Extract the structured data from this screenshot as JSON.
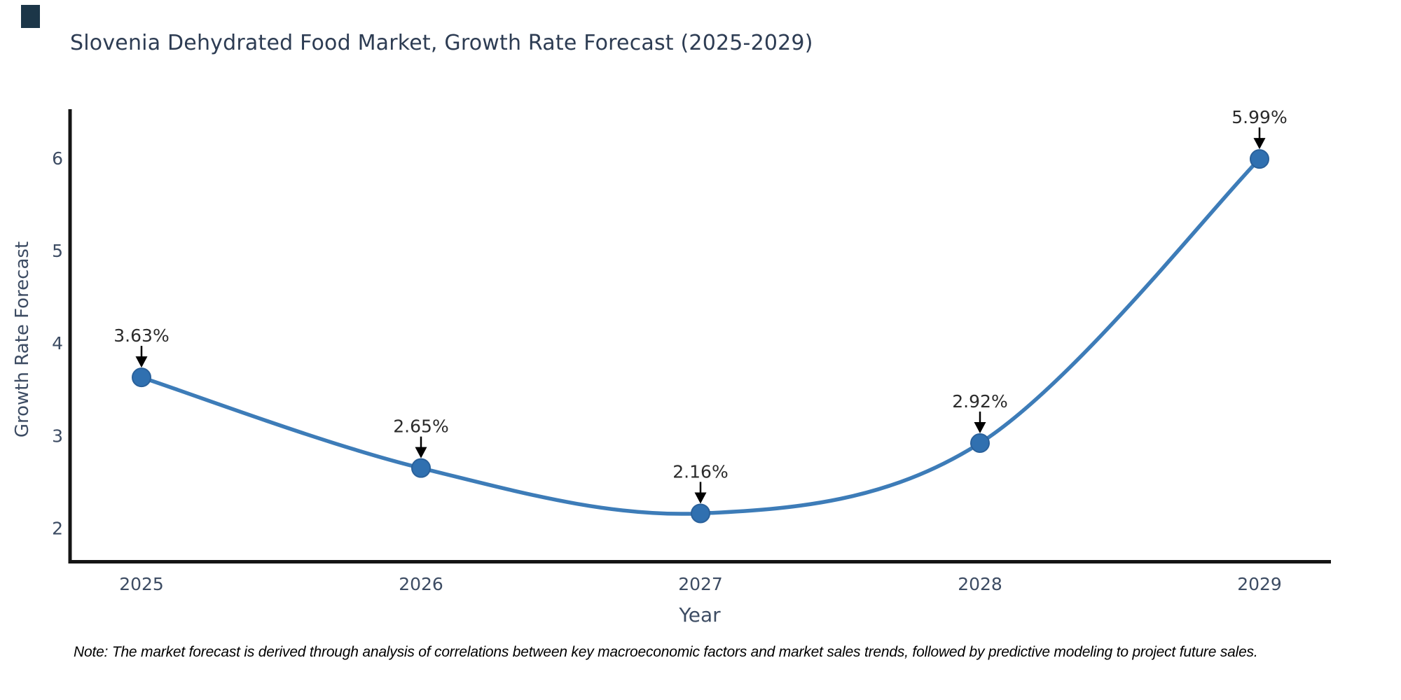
{
  "page": {
    "note": "Note: The market forecast is derived through analysis of correlations between key macroeconomic factors and market sales trends, followed by predictive modeling to project future sales."
  },
  "chart_data": {
    "type": "line",
    "title": "Slovenia Dehydrated Food Market, Growth Rate Forecast (2025-2029)",
    "xlabel": "Year",
    "ylabel": "Growth Rate Forecast",
    "x": [
      2025,
      2026,
      2027,
      2028,
      2029
    ],
    "series": [
      {
        "name": "Growth Rate Forecast",
        "values": [
          3.63,
          2.65,
          2.16,
          2.92,
          5.99
        ]
      }
    ],
    "point_labels": [
      "3.63%",
      "2.65%",
      "2.16%",
      "2.92%",
      "5.99%"
    ],
    "yticks": [
      2,
      3,
      4,
      5,
      6
    ],
    "xtick_labels": [
      "2025",
      "2026",
      "2027",
      "2028",
      "2029"
    ],
    "ylim": [
      1.63,
      6.52
    ],
    "xlim": [
      2024.74,
      2029.26
    ],
    "grid": false,
    "legend": false,
    "marker": "circle",
    "annotation_style": "value label above point with downward black arrow",
    "colors": {
      "line": "#3d7cb8",
      "marker_fill": "#3070b0",
      "marker_edge": "#2a619b",
      "annotation_text": "#2b2b2b",
      "annotation_arrow": "#000000",
      "axis_text": "#3d4c63",
      "title_text": "#2d3c53",
      "spine": "#151515",
      "brand_mark": "#1c3648"
    }
  }
}
